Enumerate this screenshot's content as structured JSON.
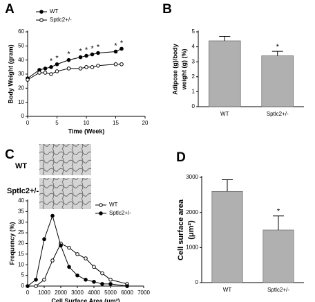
{
  "chart_data": [
    {
      "type": "line",
      "panel": "A",
      "ylabel": [
        "Body Weight (gram)"
      ],
      "xlabel": "Time (Week)",
      "x": [
        0,
        2,
        3,
        4,
        5,
        7,
        9,
        10,
        11,
        12,
        15,
        16
      ],
      "series": [
        {
          "name": "WT",
          "color": "#000000",
          "marker": "filled",
          "values": [
            27,
            33,
            34,
            35,
            37,
            40,
            42,
            43,
            44,
            45,
            46,
            48
          ]
        },
        {
          "name": "Sptlc2+/-",
          "color": "#000000",
          "marker": "open",
          "values": [
            26,
            31,
            31,
            30,
            32,
            34,
            34,
            35,
            35,
            36,
            37,
            37
          ]
        }
      ],
      "annotations": [
        {
          "text": "*",
          "x": 4
        },
        {
          "text": "*",
          "x": 5
        },
        {
          "text": "*",
          "x": 7
        },
        {
          "text": "*",
          "x": 9
        },
        {
          "text": "*",
          "x": 10
        },
        {
          "text": "*",
          "x": 11
        },
        {
          "text": "*",
          "x": 12
        },
        {
          "text": "*",
          "x": 15
        },
        {
          "text": "*",
          "x": 16
        }
      ],
      "xlim": [
        0,
        20
      ],
      "xticks": [
        0,
        5,
        10,
        15,
        20
      ],
      "ylim": [
        0,
        60
      ],
      "yticks": [
        0,
        10,
        20,
        30,
        40,
        50,
        60
      ],
      "legend": "upper-left"
    },
    {
      "type": "bar",
      "panel": "B",
      "ylabel": [
        "Adipose (g)/body",
        "weight (g) (%)"
      ],
      "categories": [
        "WT",
        "Sptlc2+/-"
      ],
      "values": [
        4.4,
        3.4
      ],
      "errors": [
        0.3,
        0.3
      ],
      "color": "#b0b0b0",
      "annotations": [
        {
          "text": "*",
          "category": 1
        }
      ],
      "ylim": [
        0,
        5
      ],
      "yticks": [
        0,
        1,
        2,
        3,
        4,
        5
      ]
    },
    {
      "type": "line",
      "panel": "C",
      "ylabel": [
        "Frequency (%)"
      ],
      "xlabel": "Cell Surface Area (μm²)",
      "image_labels": [
        "WT",
        "Sptlc2+/-"
      ],
      "series": [
        {
          "name": "WT",
          "color": "#000000",
          "marker": "open",
          "x": [
            500,
            1000,
            1500,
            2000,
            2500,
            3000,
            3500,
            4000,
            4500,
            5000,
            6000
          ],
          "values": [
            0,
            3,
            12,
            20,
            18,
            15,
            13,
            9,
            6,
            3,
            1
          ]
        },
        {
          "name": "Sptlc2+/-",
          "color": "#000000",
          "marker": "filled",
          "x": [
            0,
            500,
            1000,
            1500,
            2000,
            2500,
            3000,
            3500,
            4000,
            4500,
            5000,
            6000
          ],
          "values": [
            0,
            3,
            22,
            33,
            19,
            9,
            5,
            3,
            2,
            1,
            1,
            0
          ]
        }
      ],
      "xlim": [
        0,
        7000
      ],
      "xticks": [
        0,
        1000,
        2000,
        3000,
        4000,
        5000,
        6000,
        7000
      ],
      "ylim": [
        0,
        40
      ],
      "yticks": [
        0,
        5,
        10,
        15,
        20,
        25,
        30,
        35,
        40
      ],
      "legend": "upper-right"
    },
    {
      "type": "bar",
      "panel": "D",
      "ylabel": [
        "Cell surface area",
        "(μm²)"
      ],
      "categories": [
        "WT",
        "Sptlc2+/-"
      ],
      "values": [
        2600,
        1500
      ],
      "errors": [
        330,
        400
      ],
      "color": "#b0b0b0",
      "annotations": [
        {
          "text": "*",
          "category": 1
        }
      ],
      "ylim": [
        0,
        3000
      ],
      "yticks": [
        0,
        1000,
        2000,
        3000
      ]
    }
  ]
}
